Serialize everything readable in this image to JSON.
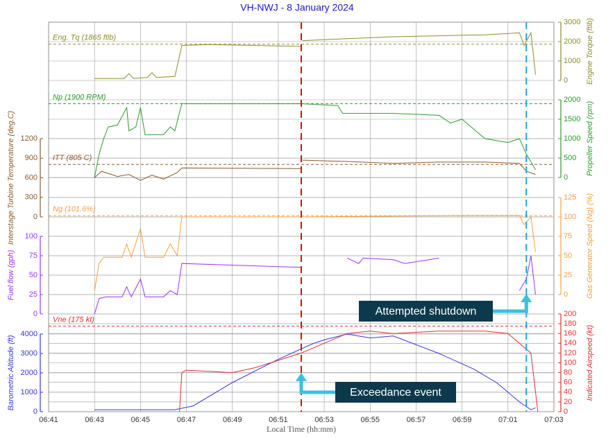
{
  "chart_data": {
    "type": "line",
    "title": "VH-NWJ - 8 January 2024",
    "x_label": "Local Time (hh:mm)",
    "xlim": [
      401,
      423
    ],
    "xticks": [
      {
        "value": 401,
        "label": "06:41"
      },
      {
        "value": 403,
        "label": "06:43"
      },
      {
        "value": 405,
        "label": "06:45"
      },
      {
        "value": 407,
        "label": "06:47"
      },
      {
        "value": 409,
        "label": "06:49"
      },
      {
        "value": 411,
        "label": "06:51"
      },
      {
        "value": 413,
        "label": "06:53"
      },
      {
        "value": 415,
        "label": "06:55"
      },
      {
        "value": 417,
        "label": "06:57"
      },
      {
        "value": 419,
        "label": "06:59"
      },
      {
        "value": 421,
        "label": "07:01"
      },
      {
        "value": 423,
        "label": "07:03"
      }
    ],
    "grid": true,
    "axes": [
      {
        "label": "Engine Torque (ftlb)",
        "side": "right",
        "lim": [
          0,
          3000
        ],
        "ticks": [
          0,
          1000,
          2000,
          3000
        ],
        "color": "#8c8c2e"
      },
      {
        "label": "Propeller Speed (rpm)",
        "side": "right",
        "lim": [
          0,
          2000
        ],
        "ticks": [
          0,
          500,
          1000,
          1500,
          2000
        ],
        "color": "#2e9a2e"
      },
      {
        "label": "Interstage Turbine Temperature (deg.C)",
        "side": "left",
        "lim": [
          0,
          1200
        ],
        "ticks": [
          0,
          300,
          600,
          900,
          1200
        ],
        "color": "#8b5a2b"
      },
      {
        "label": "Gas Generator Speed (Ng) (%)",
        "side": "right",
        "lim": [
          0,
          125
        ],
        "ticks": [
          0,
          25,
          50,
          75,
          100,
          125
        ],
        "color": "#f5a040"
      },
      {
        "label": "Fuel flow (gph)",
        "side": "left",
        "lim": [
          0,
          100
        ],
        "ticks": [
          0,
          25,
          50,
          75,
          100
        ],
        "color": "#9933ff"
      },
      {
        "label": "Barometric Altitude (ft)",
        "side": "left",
        "lim": [
          0,
          4000
        ],
        "ticks": [
          0,
          1000,
          2000,
          3000,
          4000
        ],
        "color": "#3535dd"
      },
      {
        "label": "Indicated Airspeed (kt)",
        "side": "right",
        "lim": [
          0,
          200
        ],
        "ticks": [
          0,
          20,
          40,
          60,
          80,
          100,
          120,
          140,
          160,
          180,
          200
        ],
        "color": "#e03030"
      }
    ],
    "series": [
      {
        "name": "Engine Torque (ftlb)",
        "axis": 0,
        "color": "#8c8c2e",
        "x": [
          403,
          404.3,
          404.5,
          404.7,
          405.3,
          405.5,
          405.7,
          406.5,
          406.8,
          408,
          410,
          412,
          412.02,
          412.05,
          414,
          416,
          418,
          420,
          421.5,
          421.7,
          422,
          422.2
        ],
        "values": [
          100,
          100,
          350,
          100,
          150,
          400,
          150,
          200,
          1800,
          1850,
          1800,
          1750,
          null,
          2050,
          2150,
          2250,
          2300,
          2350,
          2450,
          1800,
          2450,
          300
        ]
      },
      {
        "name": "Propeller Speed (rpm)",
        "axis": 1,
        "color": "#2e9a2e",
        "x": [
          403,
          403.2,
          403.4,
          403.6,
          404,
          404.4,
          404.5,
          404.8,
          405,
          405.2,
          406,
          406.3,
          406.5,
          406.8,
          412,
          413.6,
          413.8,
          416,
          418,
          418.5,
          419,
          420,
          421,
          421.5,
          421.8,
          422.2
        ],
        "values": [
          0,
          600,
          1000,
          1300,
          1350,
          1800,
          1200,
          1300,
          1800,
          1100,
          1100,
          1300,
          1200,
          1900,
          1900,
          1850,
          1650,
          1650,
          1600,
          1400,
          1500,
          1000,
          900,
          1000,
          600,
          200
        ]
      },
      {
        "name": "Interstage Turbine Temperature (deg.C)",
        "axis": 2,
        "color": "#8b5a2b",
        "x": [
          403,
          403.3,
          404,
          404.5,
          405,
          405.5,
          406,
          406.6,
          406.8,
          412,
          412.02,
          412.05,
          414,
          416,
          418,
          420,
          421.5,
          421.8,
          422.2
        ],
        "values": [
          600,
          700,
          620,
          650,
          560,
          640,
          580,
          680,
          750,
          740,
          null,
          870,
          850,
          820,
          840,
          840,
          820,
          700,
          650
        ]
      },
      {
        "name": "Gas Generator Speed (Ng) (%)",
        "axis": 3,
        "color": "#f5a040",
        "x": [
          403,
          403.2,
          403.4,
          404.2,
          404.4,
          404.6,
          405,
          405.2,
          406,
          406.3,
          406.6,
          406.8,
          412,
          416,
          419,
          421.5,
          421.7,
          422,
          422.2
        ],
        "values": [
          5,
          40,
          48,
          48,
          65,
          48,
          85,
          48,
          48,
          65,
          50,
          100,
          100,
          101,
          102,
          102,
          90,
          100,
          55
        ]
      },
      {
        "name": "Fuel flow (gph)",
        "axis": 4,
        "color": "#9933ff",
        "x": [
          403,
          403.2,
          403.5,
          404.2,
          404.4,
          404.6,
          405,
          405.2,
          406,
          406.3,
          406.6,
          406.8,
          412,
          412.05,
          414,
          414.5,
          414.7,
          416,
          416.5,
          418,
          418.05,
          421.5,
          421.8,
          422,
          422.2
        ],
        "values": [
          0,
          20,
          22,
          22,
          35,
          22,
          45,
          22,
          22,
          30,
          25,
          65,
          60,
          null,
          72,
          65,
          72,
          70,
          65,
          72,
          null,
          30,
          45,
          75,
          25
        ]
      },
      {
        "name": "Barometric Altitude (ft)",
        "axis": 5,
        "color": "#3535dd",
        "x": [
          403,
          406.5,
          407.3,
          409,
          411,
          412.5,
          413,
          414,
          415,
          416,
          418,
          419.5,
          420.5,
          421.5,
          422,
          422.2
        ],
        "values": [
          100,
          100,
          300,
          1500,
          2700,
          3500,
          3700,
          4000,
          3800,
          3900,
          3000,
          2200,
          1500,
          500,
          100,
          200
        ]
      },
      {
        "name": "Indicated Airspeed (kt)",
        "axis": 6,
        "color": "#e03030",
        "x": [
          406.7,
          406.8,
          407,
          409,
          410,
          411,
          412,
          413,
          414,
          415,
          416,
          418,
          420,
          421,
          422,
          422.3
        ],
        "values": [
          0,
          80,
          85,
          80,
          90,
          105,
          120,
          140,
          160,
          165,
          160,
          165,
          165,
          160,
          120,
          0
        ]
      }
    ],
    "reference_lines": [
      {
        "label": "Eng. Tq (1865 ftlb)",
        "axis": 0,
        "value": 1865
      },
      {
        "label": "Np (1900 RPM)",
        "axis": 1,
        "value": 1900
      },
      {
        "label": "ITT (805 C)",
        "axis": 2,
        "value": 805
      },
      {
        "label": "Ng (101.6%)",
        "axis": 3,
        "value": 101.6
      },
      {
        "label": "Vne (175 kt)",
        "axis": 6,
        "value": 175
      }
    ],
    "events": [
      {
        "label": "Exceedance event",
        "x": 412,
        "color": "#d01010"
      },
      {
        "label": "Attempted shutdown",
        "x": 421.8,
        "color": "#1aa3d8"
      }
    ]
  }
}
